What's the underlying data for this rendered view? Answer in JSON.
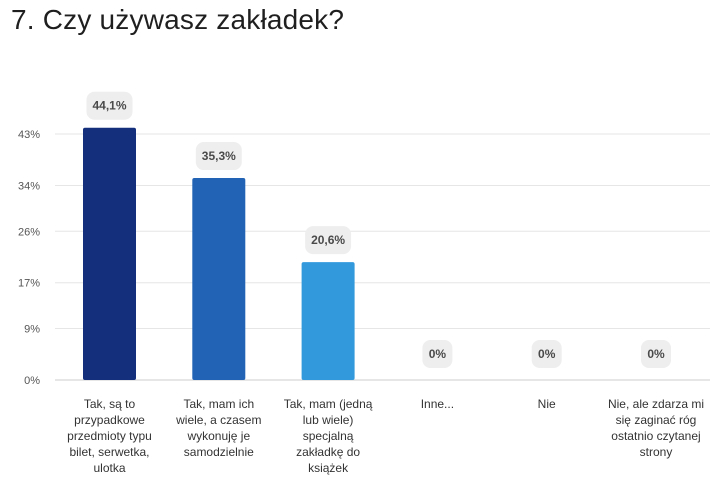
{
  "title": "7. Czy używasz zakładek?",
  "chart_data": {
    "type": "bar",
    "categories": [
      "Tak, są to przypadkowe przedmioty typu bilet, serwetka, ulotka",
      "Tak, mam ich wiele, a czasem wykonuję je samodzielnie",
      "Tak, mam (jedną lub wiele) specjalną zakładkę do książek",
      "Inne...",
      "Nie",
      "Nie, ale zdarza mi się zaginać róg ostatnio czytanej strony"
    ],
    "values": [
      44.1,
      35.3,
      20.6,
      0,
      0,
      0
    ],
    "data_labels": [
      "44,1%",
      "35,3%",
      "20,6%",
      "0%",
      "0%",
      "0%"
    ],
    "bar_colors": [
      "#14307c",
      "#2263b5",
      "#3399dd",
      "#3399dd",
      "#3399dd",
      "#3399dd"
    ],
    "y_ticks": [
      {
        "value": 0,
        "label": "0%"
      },
      {
        "value": 9,
        "label": "9%"
      },
      {
        "value": 17,
        "label": "17%"
      },
      {
        "value": 26,
        "label": "26%"
      },
      {
        "value": 34,
        "label": "34%"
      },
      {
        "value": 43,
        "label": "43%"
      }
    ],
    "ylim": [
      0,
      43
    ],
    "grid": true,
    "grid_color": "#e6e6e6",
    "label_bg": "#eeeeee"
  }
}
